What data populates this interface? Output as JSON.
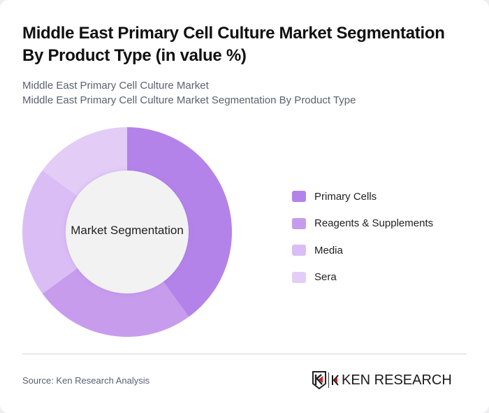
{
  "header": {
    "title": "Middle East Primary Cell Culture Market Segmentation By Product Type (in value %)",
    "subtitle_line1": "Middle East Primary Cell Culture Market",
    "subtitle_line2": "Middle East Primary Cell Culture Market Segmentation By Product Type"
  },
  "chart": {
    "center_label": "Market Segmentation"
  },
  "legend": [
    {
      "label": "Primary Cells",
      "color": "#b383ea"
    },
    {
      "label": "Reagents & Supplements",
      "color": "#c79ced"
    },
    {
      "label": "Media",
      "color": "#dabdf5"
    },
    {
      "label": "Sera",
      "color": "#e3ccf6"
    }
  ],
  "footer": {
    "source": "Source: Ken Research Analysis",
    "logo_text": "KEN RESEARCH"
  },
  "chart_data": {
    "type": "pie",
    "variant": "donut",
    "title": "Middle East Primary Cell Culture Market Segmentation By Product Type (in value %)",
    "center_label": "Market Segmentation",
    "categories": [
      "Primary Cells",
      "Reagents & Supplements",
      "Media",
      "Sera"
    ],
    "values": [
      40,
      25,
      20,
      15
    ],
    "colors": [
      "#b383ea",
      "#c79ced",
      "#dabdf5",
      "#e3ccf6"
    ],
    "unit": "%",
    "legend_position": "right",
    "data_labels_shown": false
  }
}
